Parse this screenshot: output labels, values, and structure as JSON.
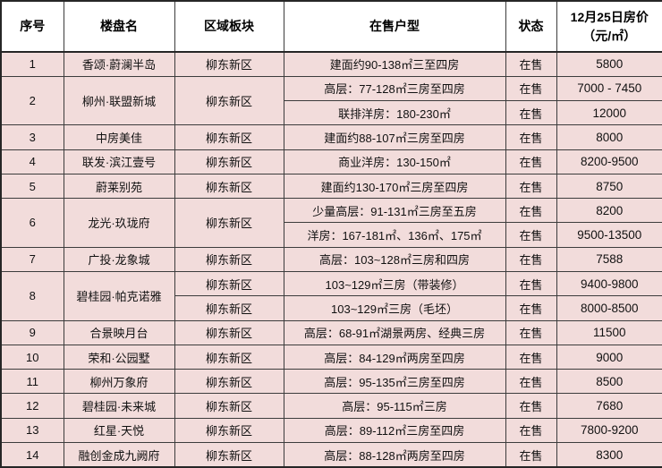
{
  "colors": {
    "row_background": "#f2dcdb",
    "header_background": "#ffffff",
    "border": "#3c3c3c",
    "text": "#111111"
  },
  "table": {
    "headers": {
      "index": "序号",
      "name": "楼盘名",
      "region": "区域板块",
      "units": "在售户型",
      "status": "状态",
      "price": "12月25日房价\n（元/㎡）"
    },
    "rows": [
      {
        "no": "1",
        "name": "香颂·蔚澜半岛",
        "region": "柳东新区",
        "units": [
          {
            "type": "建面约90-138㎡三至四房",
            "status": "在售",
            "price": "5800"
          }
        ]
      },
      {
        "no": "2",
        "name": "柳州·联盟新城",
        "region": "柳东新区",
        "units": [
          {
            "type": "高层：77-128㎡三房至四房",
            "status": "在售",
            "price": "7000 - 7450"
          },
          {
            "type": "联排洋房：180-230㎡",
            "status": "在售",
            "price": "12000"
          }
        ]
      },
      {
        "no": "3",
        "name": "中房美佳",
        "region": "柳东新区",
        "units": [
          {
            "type": "建面约88-107㎡三房至四房",
            "status": "在售",
            "price": "8000"
          }
        ]
      },
      {
        "no": "4",
        "name": "联发·滨江壹号",
        "region": "柳东新区",
        "units": [
          {
            "type": "商业洋房：130-150㎡",
            "status": "在售",
            "price": "8200-9500"
          }
        ]
      },
      {
        "no": "5",
        "name": "蔚莱别苑",
        "region": "柳东新区",
        "units": [
          {
            "type": "建面约130-170㎡三房至四房",
            "status": "在售",
            "price": "8750"
          }
        ]
      },
      {
        "no": "6",
        "name": "龙光·玖珑府",
        "region": "柳东新区",
        "units": [
          {
            "type": "少量高层：91-131㎡三房至五房",
            "status": "在售",
            "price": "8200"
          },
          {
            "type": "洋房：167-181㎡、136㎡、175㎡",
            "status": "在售",
            "price": "9500-13500"
          }
        ]
      },
      {
        "no": "7",
        "name": "广投·龙象城",
        "region": "柳东新区",
        "units": [
          {
            "type": "高层：103~128㎡三房和四房",
            "status": "在售",
            "price": "7588"
          }
        ]
      },
      {
        "no": "8",
        "name": "碧桂园·帕克诺雅",
        "region": null,
        "units": [
          {
            "region": "柳东新区",
            "type": "103~129㎡三房（带装修）",
            "status": "在售",
            "price": "9400-9800"
          },
          {
            "region": "柳东新区",
            "type": "103~129㎡三房（毛坯）",
            "status": "在售",
            "price": "8000-8500"
          }
        ]
      },
      {
        "no": "9",
        "name": "合景映月台",
        "region": "柳东新区",
        "units": [
          {
            "type": "高层：68-91㎡湖景两房、经典三房",
            "status": "在售",
            "price": "11500"
          }
        ]
      },
      {
        "no": "10",
        "name": "荣和·公园墅",
        "region": "柳东新区",
        "units": [
          {
            "type": "高层：84-129㎡两房至四房",
            "status": "在售",
            "price": "9000"
          }
        ]
      },
      {
        "no": "11",
        "name": "柳州万象府",
        "region": "柳东新区",
        "units": [
          {
            "type": "高层：95-135㎡三房至四房",
            "status": "在售",
            "price": "8500"
          }
        ]
      },
      {
        "no": "12",
        "name": "碧桂园·未来城",
        "region": "柳东新区",
        "units": [
          {
            "type": "高层：95-115㎡三房",
            "status": "在售",
            "price": "7680"
          }
        ]
      },
      {
        "no": "13",
        "name": "红星·天悦",
        "region": "柳东新区",
        "units": [
          {
            "type": "高层：89-112㎡三房至四房",
            "status": "在售",
            "price": "7800-9200"
          }
        ]
      },
      {
        "no": "14",
        "name": "融创金成九阙府",
        "region": "柳东新区",
        "units": [
          {
            "type": "高层：88-128㎡两房至四房",
            "status": "在售",
            "price": "8300"
          }
        ]
      }
    ]
  }
}
